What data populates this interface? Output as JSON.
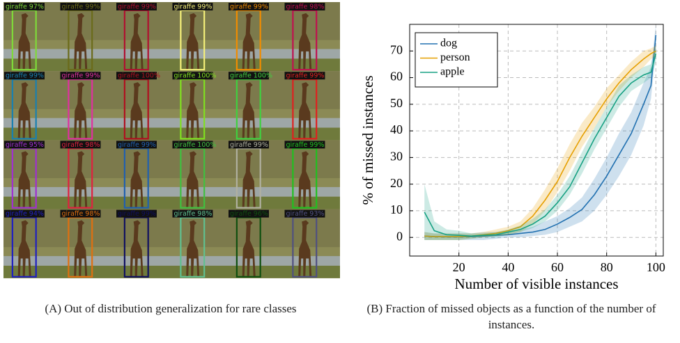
{
  "panel_a": {
    "labels": [
      [
        "giraffe 97%",
        "giraffe 99%",
        "giraffe 99%",
        "giraffe 99%",
        "giraffe 99%",
        "giraffe 98%"
      ],
      [
        "giraffe 99%",
        "giraffe 99%",
        "giraffe 100%",
        "giraffe 100%",
        "giraffe 100%",
        "giraffe 99%"
      ],
      [
        "giraffe 95%",
        "giraffe 98%",
        "giraffe 99%",
        "giraffe 100%",
        "giraffe 99%",
        "giraffe 99%"
      ],
      [
        "giraffe 94%",
        "giraffe 98%",
        "giraffe 99%",
        "giraffe 98%",
        "giraffe 96%",
        "giraffe 93%"
      ]
    ],
    "caption": "(A) Out of distribution generalization for rare classes"
  },
  "chart_data": {
    "type": "line",
    "x_label": "Number of visible instances",
    "y_label": "% of missed instances",
    "x": [
      6,
      10,
      15,
      20,
      25,
      30,
      35,
      40,
      45,
      50,
      55,
      60,
      65,
      70,
      75,
      80,
      85,
      90,
      95,
      98,
      100
    ],
    "series": [
      {
        "name": "dog",
        "color": "#2170b0",
        "values": [
          0.5,
          0.3,
          0.2,
          0.2,
          0.3,
          0.5,
          0.8,
          1,
          1.5,
          2,
          3,
          5,
          7.5,
          10.5,
          16,
          23,
          31,
          39,
          50,
          57,
          76
        ],
        "lower": [
          -1,
          -1,
          -1,
          -1,
          -1,
          -1,
          -0.5,
          0,
          0,
          0.5,
          1,
          2,
          4,
          6,
          10,
          16,
          23,
          31,
          42,
          52,
          70
        ],
        "upper": [
          2,
          1.5,
          1.5,
          1.5,
          1.5,
          2,
          2,
          2.5,
          3,
          4,
          6,
          8,
          11,
          15,
          22,
          30,
          39,
          47,
          58,
          64,
          80
        ]
      },
      {
        "name": "person",
        "color": "#e69f00",
        "values": [
          0.5,
          0.3,
          0.3,
          0.3,
          0.5,
          1,
          1.5,
          2.5,
          4,
          8,
          14,
          21,
          30,
          38,
          45,
          52,
          58,
          63,
          67,
          69,
          70
        ],
        "lower": [
          -1,
          -1,
          -1,
          -1,
          -0.5,
          0,
          0.5,
          1,
          2,
          5,
          10,
          17,
          25,
          34,
          41,
          49,
          55,
          60,
          64,
          67,
          68
        ],
        "upper": [
          2,
          1.5,
          1.5,
          1.5,
          1.5,
          2,
          3,
          4,
          6,
          11,
          18,
          26,
          35,
          43,
          49,
          56,
          61,
          66,
          70,
          71,
          72
        ]
      },
      {
        "name": "apple",
        "color": "#16a082",
        "values": [
          9.5,
          2.5,
          1,
          0.8,
          0.5,
          0.8,
          1,
          2,
          3,
          5,
          8,
          13,
          19,
          28,
          37,
          45,
          53,
          58,
          61,
          62,
          69
        ],
        "lower": [
          -1,
          -1,
          -1,
          -1,
          -0.5,
          0,
          0,
          1,
          2,
          3.5,
          6,
          10,
          16,
          24,
          33,
          41,
          49,
          55,
          58,
          60,
          66
        ],
        "upper": [
          20,
          6,
          3,
          2.5,
          1.5,
          1.5,
          2,
          3,
          4.5,
          7,
          10.5,
          16,
          23,
          32,
          41,
          49,
          57,
          61,
          64,
          65,
          72
        ]
      }
    ],
    "xlim": [
      0,
      103
    ],
    "ylim": [
      -7,
      80
    ],
    "xticks": [
      20,
      40,
      60,
      80,
      100
    ],
    "yticks": [
      0,
      10,
      20,
      30,
      40,
      50,
      60,
      70
    ],
    "grid": true,
    "legend": "upper left",
    "caption": "(B) Fraction of missed objects as a function of the number of instances."
  }
}
